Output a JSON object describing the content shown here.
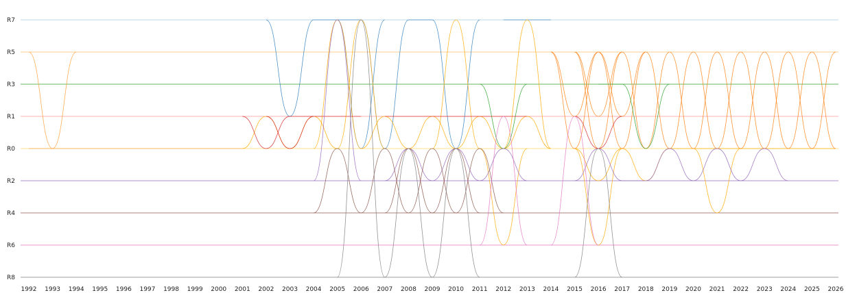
{
  "chart_data": {
    "type": "line",
    "title": "",
    "xlabel": "",
    "ylabel": "",
    "x_ticks": [
      "1992",
      "1993",
      "1994",
      "1995",
      "1996",
      "1997",
      "1998",
      "1999",
      "2000",
      "2001",
      "2002",
      "2003",
      "2004",
      "2005",
      "2006",
      "2007",
      "2008",
      "2009",
      "2010",
      "2011",
      "2012",
      "2013",
      "2014",
      "2015",
      "2016",
      "2017",
      "2018",
      "2019",
      "2020",
      "2021",
      "2022",
      "2023",
      "2024",
      "2025",
      "2026"
    ],
    "xlim": [
      1992,
      2026
    ],
    "grid": false,
    "legend": "none",
    "lanes": [
      {
        "label": "R7",
        "color": "#a6cee3"
      },
      {
        "label": "R5",
        "color": "#fdbf6f"
      },
      {
        "label": "R3",
        "color": "#33a02c"
      },
      {
        "label": "R1",
        "color": "#fb9a99"
      },
      {
        "label": "R0",
        "color": "#ffd966"
      },
      {
        "label": "R2",
        "color": "#9467bd"
      },
      {
        "label": "R4",
        "color": "#8c564b"
      },
      {
        "label": "R6",
        "color": "#e377c2"
      },
      {
        "label": "R8",
        "color": "#7f7f7f"
      }
    ],
    "series": [
      {
        "lane": "R5",
        "color": "#ff9f3a",
        "path": [
          [
            1992,
            "R5"
          ],
          [
            1993,
            "R0"
          ],
          [
            1994,
            "R5"
          ]
        ]
      },
      {
        "lane": "R5",
        "color": "#ff9f3a",
        "path": [
          [
            1992,
            "R0"
          ],
          [
            1993,
            "R0"
          ],
          [
            2001,
            "R0"
          ]
        ]
      },
      {
        "lane": "R7",
        "color": "#2f7ebc",
        "path": [
          [
            2002,
            "R7"
          ],
          [
            2003,
            "R1"
          ],
          [
            2004,
            "R7"
          ],
          [
            2005,
            "R7"
          ],
          [
            2006,
            "R0"
          ],
          [
            2007,
            "R7"
          ]
        ]
      },
      {
        "lane": "R7",
        "color": "#2f7ebc",
        "path": [
          [
            2005,
            "R7"
          ],
          [
            2006,
            "R7"
          ],
          [
            2007,
            "R0"
          ],
          [
            2008,
            "R7"
          ],
          [
            2009,
            "R7"
          ],
          [
            2010,
            "R0"
          ],
          [
            2011,
            "R7"
          ]
        ]
      },
      {
        "lane": "R7",
        "color": "#2f7ebc",
        "path": [
          [
            2012,
            "R7"
          ],
          [
            2013,
            "R7"
          ],
          [
            2014,
            "R7"
          ]
        ]
      },
      {
        "lane": "R5",
        "color": "#ffaa00",
        "path": [
          [
            2004,
            "R0"
          ],
          [
            2005,
            "R7"
          ],
          [
            2006,
            "R0"
          ]
        ]
      },
      {
        "lane": "R5",
        "color": "#ffaa00",
        "path": [
          [
            2005,
            "R0"
          ],
          [
            2006,
            "R7"
          ],
          [
            2007,
            "R0"
          ]
        ]
      },
      {
        "lane": "R5",
        "color": "#ffaa00",
        "path": [
          [
            2009,
            "R0"
          ],
          [
            2010,
            "R7"
          ],
          [
            2011,
            "R0"
          ]
        ]
      },
      {
        "lane": "R5",
        "color": "#ffaa00",
        "path": [
          [
            2012,
            "R0"
          ],
          [
            2013,
            "R7"
          ],
          [
            2014,
            "R0"
          ]
        ]
      },
      {
        "lane": "R5",
        "color": "#ffaa00",
        "path": [
          [
            2006,
            "R0"
          ],
          [
            2007,
            "R1"
          ],
          [
            2008,
            "R0"
          ],
          [
            2009,
            "R1"
          ],
          [
            2010,
            "R0"
          ],
          [
            2011,
            "R1"
          ],
          [
            2012,
            "R0"
          ],
          [
            2013,
            "R1"
          ],
          [
            2014,
            "R0"
          ]
        ]
      },
      {
        "lane": "R5",
        "color": "#ffaa00",
        "path": [
          [
            2001,
            "R0"
          ],
          [
            2002,
            "R1"
          ],
          [
            2003,
            "R0"
          ],
          [
            2004,
            "R1"
          ],
          [
            2005,
            "R0"
          ]
        ]
      },
      {
        "lane": "R5",
        "color": "#ffaa00",
        "path": [
          [
            2011,
            "R0"
          ],
          [
            2012,
            "R6"
          ],
          [
            2013,
            "R0"
          ]
        ]
      },
      {
        "lane": "R5",
        "color": "#ffaa00",
        "path": [
          [
            2015,
            "R0"
          ],
          [
            2016,
            "R6"
          ],
          [
            2017,
            "R0"
          ]
        ]
      },
      {
        "lane": "R5",
        "color": "#ffaa00",
        "path": [
          [
            2020,
            "R0"
          ],
          [
            2021,
            "R4"
          ],
          [
            2022,
            "R0"
          ]
        ]
      },
      {
        "lane": "R5",
        "color": "#ffaa00",
        "path": [
          [
            2015,
            "R0"
          ],
          [
            2016,
            "R2"
          ],
          [
            2017,
            "R0"
          ],
          [
            2018,
            "R2"
          ],
          [
            2019,
            "R0"
          ],
          [
            2020,
            "R0"
          ],
          [
            2026,
            "R0"
          ]
        ]
      },
      {
        "lane": "R5",
        "color": "#ff7f0e",
        "path": [
          [
            2014,
            "R5"
          ],
          [
            2015,
            "R0"
          ],
          [
            2016,
            "R5"
          ],
          [
            2017,
            "R0"
          ],
          [
            2018,
            "R5"
          ],
          [
            2019,
            "R0"
          ],
          [
            2020,
            "R5"
          ],
          [
            2021,
            "R0"
          ],
          [
            2022,
            "R5"
          ],
          [
            2023,
            "R0"
          ],
          [
            2024,
            "R5"
          ],
          [
            2025,
            "R0"
          ],
          [
            2026,
            "R5"
          ]
        ]
      },
      {
        "lane": "R5",
        "color": "#ff7f0e",
        "path": [
          [
            2015,
            "R5"
          ],
          [
            2016,
            "R0"
          ],
          [
            2017,
            "R5"
          ],
          [
            2018,
            "R0"
          ],
          [
            2019,
            "R5"
          ],
          [
            2020,
            "R0"
          ],
          [
            2021,
            "R5"
          ],
          [
            2022,
            "R0"
          ],
          [
            2023,
            "R5"
          ],
          [
            2024,
            "R0"
          ],
          [
            2025,
            "R5"
          ],
          [
            2026,
            "R0"
          ]
        ]
      },
      {
        "lane": "R5",
        "color": "#ff7f0e",
        "path": [
          [
            2014,
            "R5"
          ],
          [
            2015,
            "R1"
          ],
          [
            2016,
            "R5"
          ],
          [
            2017,
            "R1"
          ],
          [
            2018,
            "R5"
          ]
        ]
      },
      {
        "lane": "R5",
        "color": "#ff7f0e",
        "path": [
          [
            2015,
            "R5"
          ],
          [
            2016,
            "R1"
          ],
          [
            2017,
            "R5"
          ]
        ]
      },
      {
        "lane": "R3",
        "color": "#2ca02c",
        "path": [
          [
            2011,
            "R3"
          ],
          [
            2012,
            "R0"
          ],
          [
            2013,
            "R3"
          ]
        ]
      },
      {
        "lane": "R3",
        "color": "#2ca02c",
        "path": [
          [
            2016,
            "R3"
          ],
          [
            2017,
            "R3"
          ],
          [
            2018,
            "R0"
          ],
          [
            2019,
            "R3"
          ]
        ]
      },
      {
        "lane": "R1",
        "color": "#d62728",
        "path": [
          [
            2001,
            "R1"
          ],
          [
            2002,
            "R0"
          ],
          [
            2003,
            "R1"
          ],
          [
            2004,
            "R1"
          ],
          [
            2005,
            "R1"
          ],
          [
            2006,
            "R1"
          ]
        ]
      },
      {
        "lane": "R1",
        "color": "#d62728",
        "path": [
          [
            2002,
            "R1"
          ],
          [
            2003,
            "R0"
          ],
          [
            2004,
            "R1"
          ]
        ]
      },
      {
        "lane": "R1",
        "color": "#d62728",
        "path": [
          [
            2007,
            "R1"
          ],
          [
            2008,
            "R1"
          ],
          [
            2009,
            "R1"
          ],
          [
            2010,
            "R1"
          ],
          [
            2011,
            "R1"
          ],
          [
            2012,
            "R1"
          ],
          [
            2013,
            "R1"
          ]
        ]
      },
      {
        "lane": "R1",
        "color": "#d62728",
        "path": [
          [
            2015,
            "R1"
          ],
          [
            2016,
            "R0"
          ],
          [
            2017,
            "R1"
          ]
        ]
      },
      {
        "lane": "R2",
        "color": "#9467bd",
        "path": [
          [
            2004,
            "R2"
          ],
          [
            2005,
            "R7"
          ],
          [
            2006,
            "R2"
          ]
        ]
      },
      {
        "lane": "R2",
        "color": "#9467bd",
        "path": [
          [
            2007,
            "R2"
          ],
          [
            2008,
            "R0"
          ],
          [
            2009,
            "R2"
          ],
          [
            2010,
            "R0"
          ],
          [
            2011,
            "R2"
          ],
          [
            2012,
            "R0"
          ],
          [
            2013,
            "R2"
          ]
        ]
      },
      {
        "lane": "R2",
        "color": "#9467bd",
        "path": [
          [
            2015,
            "R2"
          ],
          [
            2016,
            "R0"
          ],
          [
            2017,
            "R2"
          ],
          [
            2018,
            "R2"
          ],
          [
            2019,
            "R0"
          ],
          [
            2020,
            "R2"
          ],
          [
            2021,
            "R0"
          ],
          [
            2022,
            "R2"
          ],
          [
            2023,
            "R0"
          ],
          [
            2024,
            "R2"
          ]
        ]
      },
      {
        "lane": "R4",
        "color": "#8c564b",
        "path": [
          [
            2004,
            "R4"
          ],
          [
            2005,
            "R0"
          ],
          [
            2006,
            "R4"
          ],
          [
            2007,
            "R0"
          ],
          [
            2008,
            "R4"
          ],
          [
            2009,
            "R0"
          ],
          [
            2010,
            "R4"
          ],
          [
            2011,
            "R0"
          ],
          [
            2012,
            "R4"
          ]
        ]
      },
      {
        "lane": "R4",
        "color": "#8c564b",
        "path": [
          [
            2007,
            "R4"
          ],
          [
            2008,
            "R0"
          ],
          [
            2009,
            "R4"
          ],
          [
            2010,
            "R0"
          ],
          [
            2011,
            "R4"
          ]
        ]
      },
      {
        "lane": "R6",
        "color": "#e377c2",
        "path": [
          [
            2011,
            "R6"
          ],
          [
            2012,
            "R1"
          ],
          [
            2013,
            "R6"
          ]
        ]
      },
      {
        "lane": "R6",
        "color": "#e377c2",
        "path": [
          [
            2014,
            "R6"
          ],
          [
            2015,
            "R1"
          ],
          [
            2016,
            "R6"
          ]
        ]
      },
      {
        "lane": "R8",
        "color": "#7f7f7f",
        "path": [
          [
            2005,
            "R8"
          ],
          [
            2006,
            "R7"
          ],
          [
            2007,
            "R8"
          ],
          [
            2008,
            "R0"
          ],
          [
            2009,
            "R8"
          ],
          [
            2010,
            "R0"
          ],
          [
            2011,
            "R8"
          ]
        ]
      },
      {
        "lane": "R8",
        "color": "#7f7f7f",
        "path": [
          [
            2015,
            "R8"
          ],
          [
            2016,
            "R0"
          ],
          [
            2017,
            "R8"
          ]
        ]
      }
    ]
  }
}
